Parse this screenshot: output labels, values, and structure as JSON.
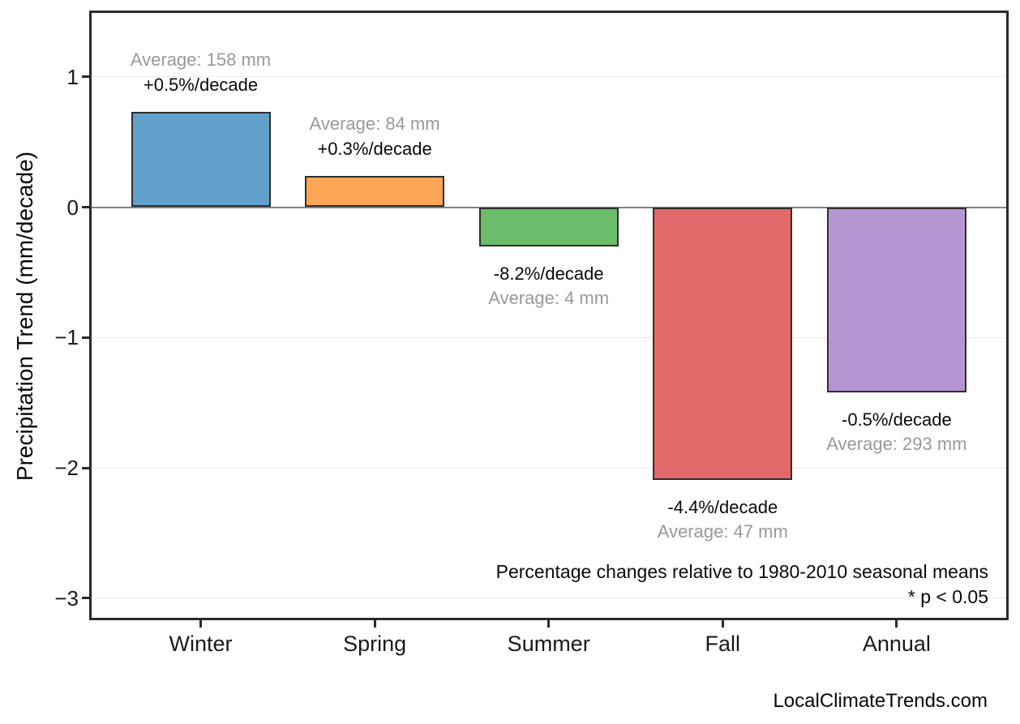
{
  "chart_data": {
    "type": "bar",
    "categories": [
      "Winter",
      "Spring",
      "Summer",
      "Fall",
      "Annual"
    ],
    "values": [
      0.73,
      0.24,
      -0.3,
      -2.09,
      -1.42
    ],
    "series_name": "Precipitation Trend",
    "pct_labels": [
      "+0.5%/decade",
      "+0.3%/decade",
      "-8.2%/decade",
      "-4.4%/decade",
      "-0.5%/decade"
    ],
    "avg_labels": [
      "Average: 158 mm",
      "Average: 84 mm",
      "Average: 4 mm",
      "Average: 47 mm",
      "Average: 293 mm"
    ],
    "averages_mm": [
      158,
      84,
      4,
      47,
      293
    ],
    "pct_per_decade": [
      0.5,
      0.3,
      -8.2,
      -4.4,
      -0.5
    ],
    "bar_colors": [
      "#62a0cb",
      "#ffa556",
      "#6bbd6b",
      "#e26869",
      "#b495d1"
    ],
    "bar_edge_color": "#2e2e2e",
    "title": "",
    "xlabel": "",
    "ylabel": "Precipitation Trend (mm/decade)",
    "ylim": [
      -3.15,
      1.5
    ],
    "yticks": [
      1,
      0,
      -1,
      -2,
      -3
    ],
    "ytick_labels": [
      "1",
      "0",
      "−1",
      "−2",
      "−3"
    ],
    "grid": "horizontal",
    "grid_color": "#e9e9e9",
    "zero_line_color": "#808080",
    "legend": "none",
    "note_line1": "Percentage changes relative to 1980-2010 seasonal means",
    "note_line2": "* p < 0.05",
    "watermark": "LocalClimateTrends.com",
    "pct_text_color": "#0a0a0a",
    "avg_text_color": "#999999"
  }
}
